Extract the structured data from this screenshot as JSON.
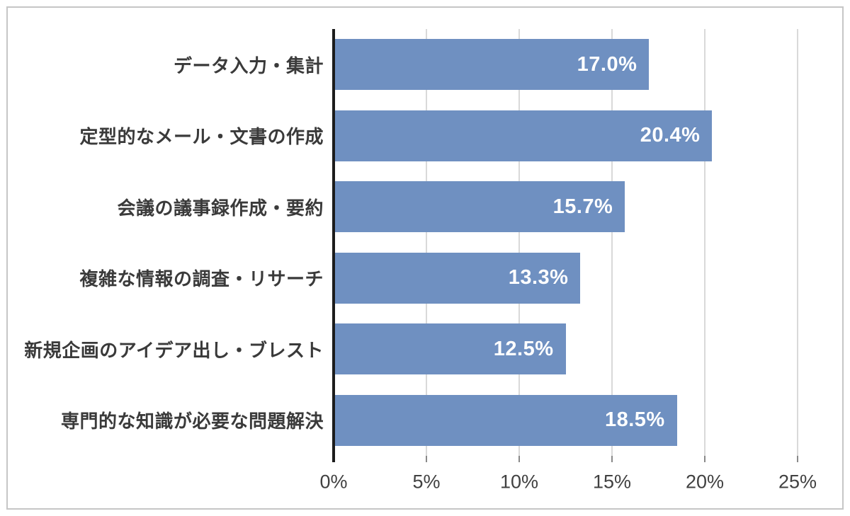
{
  "chart_data": {
    "type": "bar",
    "orientation": "horizontal",
    "title": "",
    "xlabel": "",
    "ylabel": "",
    "categories": [
      "データ入力・集計",
      "定型的なメール・文書の作成",
      "会議の議事録作成・要約",
      "複雑な情報の調査・リサーチ",
      "新規企画のアイデア出し・ブレスト",
      "専門的な知識が必要な問題解決"
    ],
    "values": [
      17.0,
      20.4,
      15.7,
      13.3,
      12.5,
      18.5
    ],
    "value_labels": [
      "17.0%",
      "20.4%",
      "15.7%",
      "13.3%",
      "12.5%",
      "18.5%"
    ],
    "x_ticks": [
      0,
      5,
      10,
      15,
      20,
      25
    ],
    "x_tick_labels": [
      "0%",
      "5%",
      "10%",
      "15%",
      "20%",
      "25%"
    ],
    "xlim": [
      0,
      25
    ],
    "grid": true,
    "legend": false,
    "bar_color": "#6f90c1",
    "gridline_color": "#d9d9d9",
    "axis_line_color": "#1c1c1c",
    "value_label_color": "#ffffff",
    "category_label_color": "#3a3a3a",
    "tick_label_color": "#414141"
  }
}
